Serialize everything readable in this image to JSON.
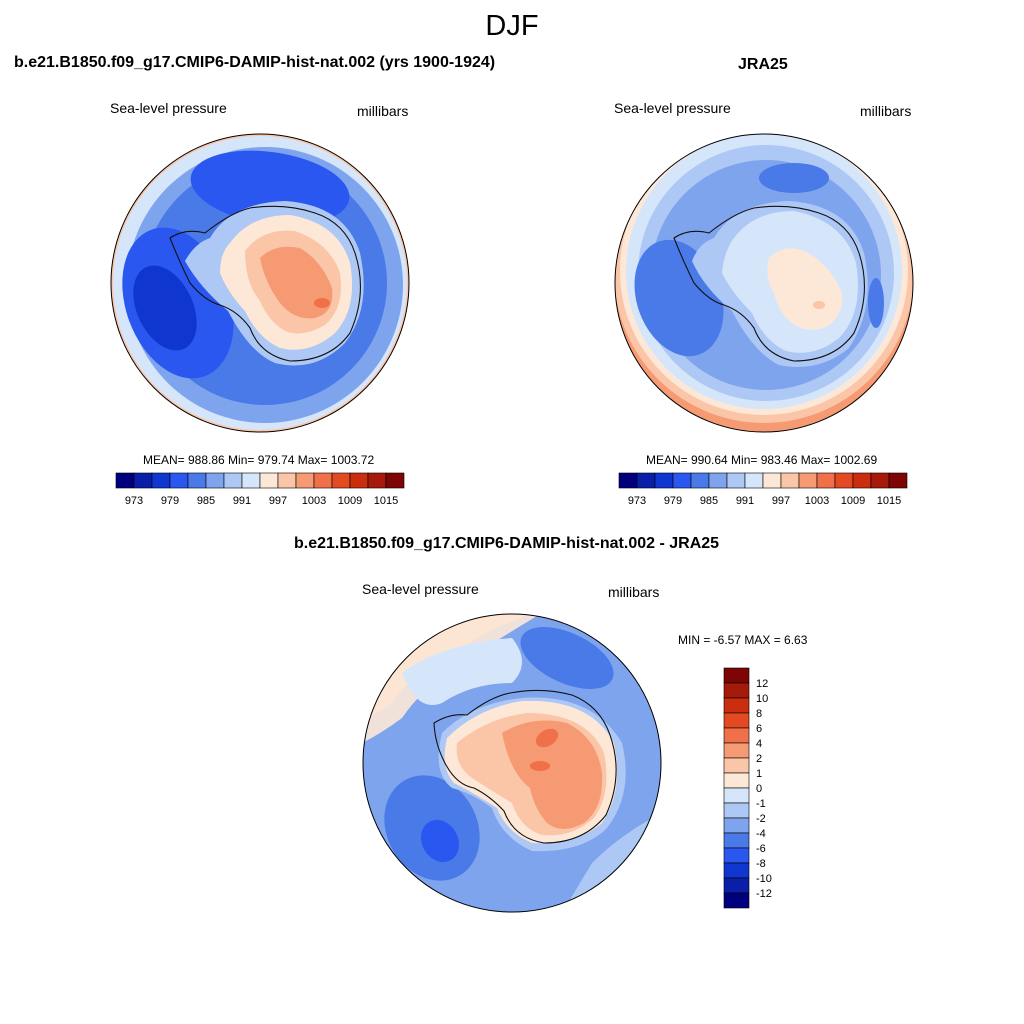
{
  "title": "DJF",
  "panel_left": {
    "title": "b.e21.B1850.f09_g17.CMIP6-DAMIP-hist-nat.002 (yrs 1900-1924)",
    "variable": "Sea-level pressure",
    "units": "millibars",
    "stats": "MEAN= 988.86  Min= 979.74  Max= 1003.72"
  },
  "panel_right": {
    "title": "JRA25",
    "variable": "Sea-level pressure",
    "units": "millibars",
    "stats": "MEAN= 990.64  Min= 983.46  Max= 1002.69"
  },
  "panel_diff": {
    "title": "b.e21.B1850.f09_g17.CMIP6-DAMIP-hist-nat.002 - JRA25",
    "variable": "Sea-level pressure",
    "units": "millibars",
    "stats": "MIN =  -6.57 MAX =   6.63"
  },
  "colorbar_abs": {
    "colors": [
      "#00007f",
      "#0a1fa8",
      "#1036d0",
      "#2a57f0",
      "#4a7ae8",
      "#7fa4ee",
      "#aec8f5",
      "#d6e6fa",
      "#fde8d8",
      "#fbc5a8",
      "#f69a73",
      "#f0704a",
      "#e34a22",
      "#cb2e0f",
      "#a51a0a",
      "#7e0505"
    ],
    "labels": [
      "973",
      "979",
      "985",
      "991",
      "997",
      "1003",
      "1009",
      "1015"
    ]
  },
  "colorbar_diff": {
    "colors": [
      "#7e0505",
      "#a51a0a",
      "#cb2e0f",
      "#e34a22",
      "#f0704a",
      "#f69a73",
      "#fbc5a8",
      "#fde8d8",
      "#d6e6fa",
      "#aec8f5",
      "#7fa4ee",
      "#4a7ae8",
      "#2a57f0",
      "#1036d0",
      "#0a1fa8",
      "#00007f"
    ],
    "labels": [
      "12",
      "10",
      "8",
      "6",
      "4",
      "2",
      "1",
      "0",
      "-1",
      "-2",
      "-4",
      "-6",
      "-8",
      "-10",
      "-12"
    ]
  }
}
